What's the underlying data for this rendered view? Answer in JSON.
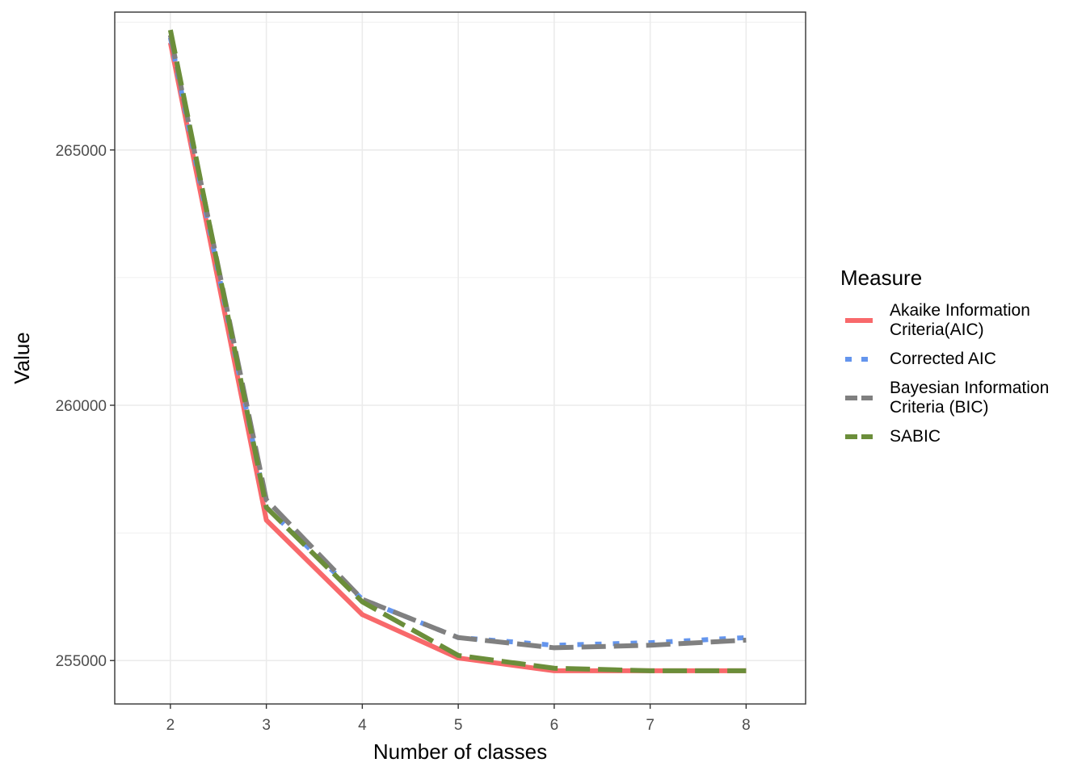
{
  "chart_data": {
    "type": "line",
    "title": "",
    "xlabel": "Number of classes",
    "ylabel": "Value",
    "x": [
      2,
      3,
      4,
      5,
      6,
      7,
      8
    ],
    "xlim": [
      1.42,
      8.62
    ],
    "ylim": [
      254150,
      267700
    ],
    "x_ticks": [
      2,
      3,
      4,
      5,
      6,
      7,
      8
    ],
    "y_ticks": [
      255000,
      260000,
      265000
    ],
    "grid": true,
    "legend": {
      "title": "Measure",
      "position": "right"
    },
    "series": [
      {
        "name": "Akaike Information Criteria(AIC)",
        "name_lines": [
          "Akaike Information",
          "Criteria(AIC)"
        ],
        "color": "#F8696B",
        "dash": "solid",
        "values": [
          267100,
          257750,
          255900,
          255050,
          254800,
          254800,
          254800
        ]
      },
      {
        "name": "Corrected AIC",
        "name_lines": [
          "Corrected AIC"
        ],
        "color": "#6495ED",
        "dash": "dotted",
        "values": [
          267200,
          258000,
          256200,
          255450,
          255300,
          255350,
          255450
        ]
      },
      {
        "name": "Bayesian Information Criteria (BIC)",
        "name_lines": [
          "Bayesian Information",
          "Criteria (BIC)"
        ],
        "color": "#808080",
        "dash": "dashed",
        "values": [
          267250,
          258150,
          256200,
          255450,
          255250,
          255300,
          255400
        ]
      },
      {
        "name": "SABIC",
        "name_lines": [
          "SABIC"
        ],
        "color": "#6B8E3A",
        "dash": "dashed",
        "values": [
          267350,
          258000,
          256150,
          255100,
          254850,
          254800,
          254800
        ]
      }
    ]
  }
}
